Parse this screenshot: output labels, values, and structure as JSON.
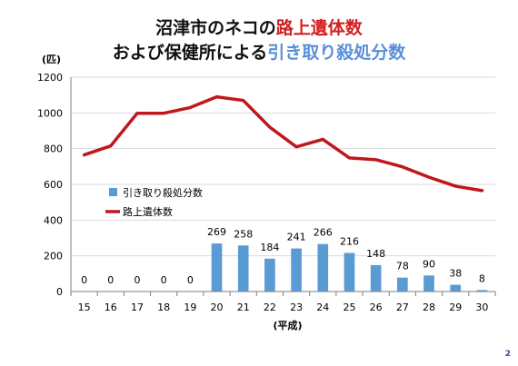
{
  "title": {
    "line1_prefix": "沼津市のネコの",
    "line1_highlight": "路上遺体数",
    "line2_prefix": "および保健所による",
    "line2_highlight": "引き取り殺処分数"
  },
  "page_number": "2",
  "colors": {
    "bar": "#5b9bd5",
    "line": "#c0171e",
    "title_red": "#d21f1f",
    "title_blue": "#5a8fd8",
    "grid": "#d9d9d9",
    "axis": "#7f7f7f"
  },
  "chart_data": {
    "type": "bar",
    "title": "沼津市のネコの路上遺体数 および保健所による引き取り殺処分数",
    "ylabel": "(匹)",
    "xlabel": "(平成)",
    "ylim": [
      0,
      1200
    ],
    "yticks": [
      0,
      200,
      400,
      600,
      800,
      1000,
      1200
    ],
    "grid": true,
    "legend_position": "left-middle",
    "categories": [
      "15",
      "16",
      "17",
      "18",
      "19",
      "20",
      "21",
      "22",
      "23",
      "24",
      "25",
      "26",
      "27",
      "28",
      "29",
      "30"
    ],
    "series": [
      {
        "name": "引き取り殺処分数",
        "type": "bar",
        "values": [
          0,
          0,
          0,
          0,
          0,
          269,
          258,
          184,
          241,
          266,
          216,
          148,
          78,
          90,
          38,
          8
        ],
        "labels": [
          "0",
          "0",
          "0",
          "0",
          "0",
          "269",
          "258",
          "184",
          "241",
          "266",
          "216",
          "148",
          "78",
          "90",
          "38",
          "8"
        ]
      },
      {
        "name": "路上遺体数",
        "type": "line",
        "values": [
          765,
          815,
          998,
          998,
          1030,
          1090,
          1070,
          920,
          810,
          852,
          748,
          738,
          698,
          640,
          590,
          565
        ]
      }
    ]
  }
}
